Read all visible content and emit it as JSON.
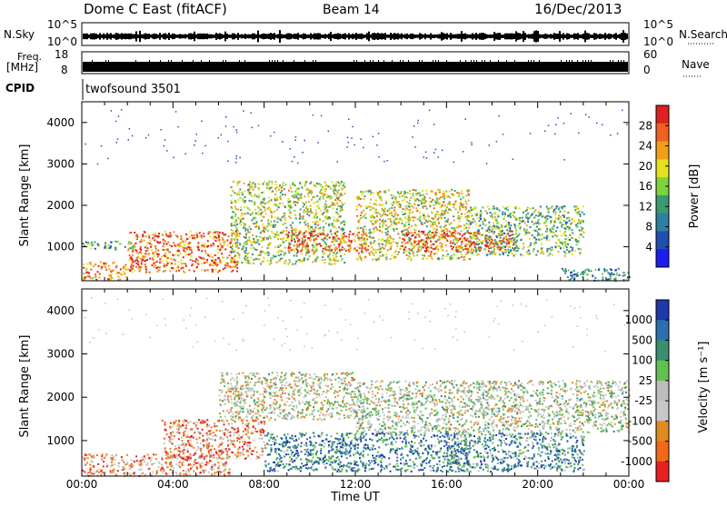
{
  "header": {
    "station": "Dome C East (fitACF)",
    "beam": "Beam 14",
    "date": "16/Dec/2013"
  },
  "strip_labels": {
    "nsky": "N.Sky",
    "nsky_ticks": [
      "10^5",
      "10^0"
    ],
    "nsearch": "N.Search",
    "nsearch_ticks": [
      "10^5",
      "10^0"
    ],
    "freq_line1": "Freq.",
    "freq_line2": "[MHz]",
    "freq_ticks": [
      "18",
      "8"
    ],
    "nave": "Nave",
    "nave_ticks": [
      "60",
      "0"
    ],
    "cpid": "CPID",
    "cpid_value": "twofsound 3501"
  },
  "colors": {
    "power": [
      "#1c1cf0",
      "#1f4fb0",
      "#2f7fa0",
      "#3a9a70",
      "#7ed23a",
      "#e6e020",
      "#f0a018",
      "#f06020",
      "#e02020"
    ],
    "velocity": [
      "#1c3aa8",
      "#2c6fb0",
      "#3a8f70",
      "#62c050",
      "#bdbdbd",
      "#c8c8c8",
      "#e08a20",
      "#f06818",
      "#e82020"
    ],
    "strip_fill": "#000000"
  },
  "chart_data": [
    {
      "type": "heatmap",
      "panel": "power",
      "xlabel": "",
      "ylabel": "Slant Range [km]",
      "x_range_hours": [
        0,
        24
      ],
      "x_ticks": [
        "00:00",
        "04:00",
        "08:00",
        "12:00",
        "16:00",
        "20:00",
        "00:00"
      ],
      "y_range_km": [
        180,
        4500
      ],
      "y_ticks": [
        "1000",
        "2000",
        "3000",
        "4000"
      ],
      "colorbar_label": "Power [dB]",
      "colorbar_ticks": [
        "4",
        "8",
        "12",
        "16",
        "20",
        "24",
        "28"
      ],
      "colorbar_range": [
        0,
        30
      ],
      "regions": [
        {
          "t0": 0.0,
          "t1": 2.0,
          "r0": 200,
          "r1": 650,
          "level": 0.75
        },
        {
          "t0": 0.0,
          "t1": 2.3,
          "r0": 950,
          "r1": 1150,
          "level": 0.4
        },
        {
          "t0": 2.0,
          "t1": 6.8,
          "r0": 400,
          "r1": 1400,
          "level": 0.82
        },
        {
          "t0": 6.5,
          "t1": 11.5,
          "r0": 600,
          "r1": 2600,
          "level": 0.55
        },
        {
          "t0": 9.0,
          "t1": 12.5,
          "r0": 900,
          "r1": 1400,
          "level": 0.88
        },
        {
          "t0": 12.0,
          "t1": 17.0,
          "r0": 700,
          "r1": 2400,
          "level": 0.6
        },
        {
          "t0": 14.0,
          "t1": 19.0,
          "r0": 900,
          "r1": 1400,
          "level": 0.9
        },
        {
          "t0": 17.0,
          "t1": 22.0,
          "r0": 800,
          "r1": 2000,
          "level": 0.45
        },
        {
          "t0": 21.0,
          "t1": 24.0,
          "r0": 200,
          "r1": 500,
          "level": 0.3
        }
      ]
    },
    {
      "type": "heatmap",
      "panel": "velocity",
      "xlabel": "Time UT",
      "ylabel": "Slant Range [km]",
      "x_range_hours": [
        0,
        24
      ],
      "x_ticks": [
        "00:00",
        "04:00",
        "08:00",
        "12:00",
        "16:00",
        "20:00",
        "00:00"
      ],
      "y_range_km": [
        180,
        4500
      ],
      "y_ticks": [
        "1000",
        "2000",
        "3000",
        "4000"
      ],
      "colorbar_label": "Velocity [m s⁻¹]",
      "colorbar_ticks": [
        "1000",
        "500",
        "100",
        "25",
        "-25",
        "-100",
        "-500",
        "-1000"
      ],
      "regions": [
        {
          "t0": 0.0,
          "t1": 6.5,
          "r0": 200,
          "r1": 700,
          "level": 0.72
        },
        {
          "t0": 3.5,
          "t1": 8.0,
          "r0": 600,
          "r1": 1500,
          "level": 0.78
        },
        {
          "t0": 6.0,
          "t1": 12.0,
          "r0": 1500,
          "r1": 2600,
          "level": 0.55
        },
        {
          "t0": 8.0,
          "t1": 17.0,
          "r0": 300,
          "r1": 1200,
          "level": 0.22
        },
        {
          "t0": 12.0,
          "t1": 24.0,
          "r0": 1200,
          "r1": 2400,
          "level": 0.5
        },
        {
          "t0": 16.0,
          "t1": 22.0,
          "r0": 300,
          "r1": 1200,
          "level": 0.28
        }
      ]
    }
  ]
}
